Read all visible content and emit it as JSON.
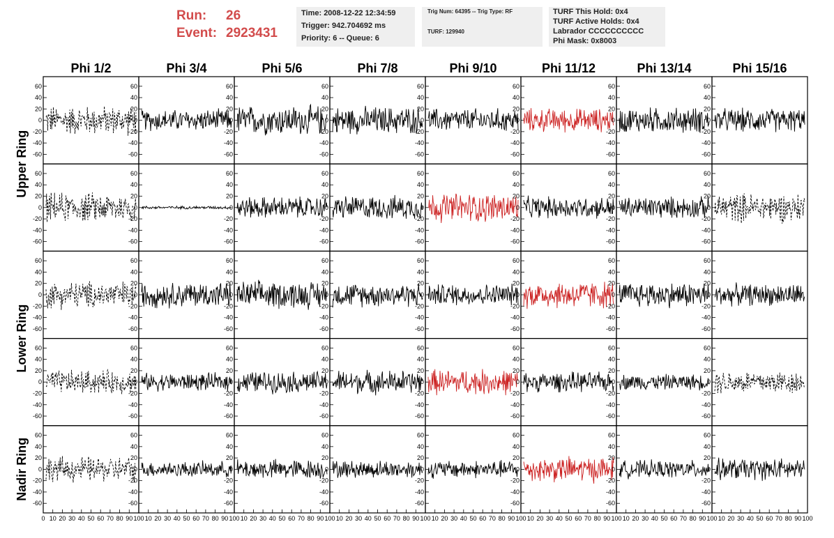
{
  "header": {
    "run_label": "Run:",
    "run_value": "26",
    "event_label": "Event:",
    "event_value": "2923431",
    "info1": [
      "Time: 2008-12-22 12:34:59",
      "Trigger: 942.704692 ms",
      "Priority: 6 -- Queue: 6"
    ],
    "info2": [
      "Trig Num: 64395 -- Trig Type: RF",
      "TURF: 129940"
    ],
    "info3": [
      "TURF This Hold: 0x4",
      "TURF Active Holds: 0x4",
      "Labrador CCCCCCCCCC",
      "Phi Mask: 0x8003"
    ]
  },
  "colors": {
    "accent": "#d24b4b",
    "info_bg": "#efefef",
    "trace": "#000000",
    "highlight_trace": "#cc2222"
  },
  "chart_data": {
    "type": "line",
    "columns": [
      "Phi 1/2",
      "Phi 3/4",
      "Phi 5/6",
      "Phi 7/8",
      "Phi 9/10",
      "Phi 11/12",
      "Phi 13/14",
      "Phi 15/16"
    ],
    "row_groups": [
      "Upper Ring",
      "Lower Ring",
      "Nadir Ring"
    ],
    "rows": 5,
    "y_ticks": [
      60,
      40,
      20,
      0,
      -20,
      -40,
      -60
    ],
    "ylim": [
      -72,
      72
    ],
    "xlim": [
      0,
      100
    ],
    "x_ticks_first": [
      "0",
      "10",
      "20",
      "30",
      "40",
      "50",
      "60",
      "70",
      "80",
      "90",
      "100"
    ],
    "x_ticks_other": [
      "10",
      "20",
      "30",
      "40",
      "50",
      "60",
      "70",
      "80",
      "90",
      "100"
    ],
    "panels": [
      [
        {
          "style": "dashed",
          "color": "black",
          "amp": 30
        },
        {
          "style": "solid",
          "color": "black",
          "amp": 22
        },
        {
          "style": "solid",
          "color": "black",
          "amp": 30
        },
        {
          "style": "solid",
          "color": "black",
          "amp": 28
        },
        {
          "style": "solid",
          "color": "black",
          "amp": 24
        },
        {
          "style": "solid",
          "color": "red",
          "amp": 24
        },
        {
          "style": "solid",
          "color": "black",
          "amp": 26
        },
        {
          "style": "solid",
          "color": "black",
          "amp": 24
        }
      ],
      [
        {
          "style": "dashed",
          "color": "black",
          "amp": 30
        },
        {
          "style": "solid",
          "color": "black",
          "amp": 3
        },
        {
          "style": "solid",
          "color": "black",
          "amp": 22
        },
        {
          "style": "solid",
          "color": "black",
          "amp": 24
        },
        {
          "style": "solid",
          "color": "red",
          "amp": 30
        },
        {
          "style": "solid",
          "color": "black",
          "amp": 22
        },
        {
          "style": "solid",
          "color": "black",
          "amp": 22
        },
        {
          "style": "dashed",
          "color": "black",
          "amp": 30
        }
      ],
      [
        {
          "style": "dashed",
          "color": "black",
          "amp": 28
        },
        {
          "style": "solid",
          "color": "black",
          "amp": 26
        },
        {
          "style": "solid",
          "color": "black",
          "amp": 28
        },
        {
          "style": "solid",
          "color": "black",
          "amp": 24
        },
        {
          "style": "solid",
          "color": "black",
          "amp": 22
        },
        {
          "style": "solid",
          "color": "red",
          "amp": 28
        },
        {
          "style": "solid",
          "color": "black",
          "amp": 26
        },
        {
          "style": "solid",
          "color": "black",
          "amp": 22
        }
      ],
      [
        {
          "style": "dashed",
          "color": "black",
          "amp": 24
        },
        {
          "style": "solid",
          "color": "black",
          "amp": 18
        },
        {
          "style": "solid",
          "color": "black",
          "amp": 22
        },
        {
          "style": "solid",
          "color": "black",
          "amp": 24
        },
        {
          "style": "solid",
          "color": "red",
          "amp": 26
        },
        {
          "style": "solid",
          "color": "black",
          "amp": 20
        },
        {
          "style": "solid",
          "color": "black",
          "amp": 16
        },
        {
          "style": "dashed",
          "color": "black",
          "amp": 24
        }
      ],
      [
        {
          "style": "dashed",
          "color": "black",
          "amp": 26
        },
        {
          "style": "solid",
          "color": "black",
          "amp": 16
        },
        {
          "style": "solid",
          "color": "black",
          "amp": 20
        },
        {
          "style": "solid",
          "color": "black",
          "amp": 18
        },
        {
          "style": "solid",
          "color": "black",
          "amp": 18
        },
        {
          "style": "solid",
          "color": "red",
          "amp": 26
        },
        {
          "style": "solid",
          "color": "black",
          "amp": 18
        },
        {
          "style": "solid",
          "color": "black",
          "amp": 22
        }
      ]
    ]
  }
}
